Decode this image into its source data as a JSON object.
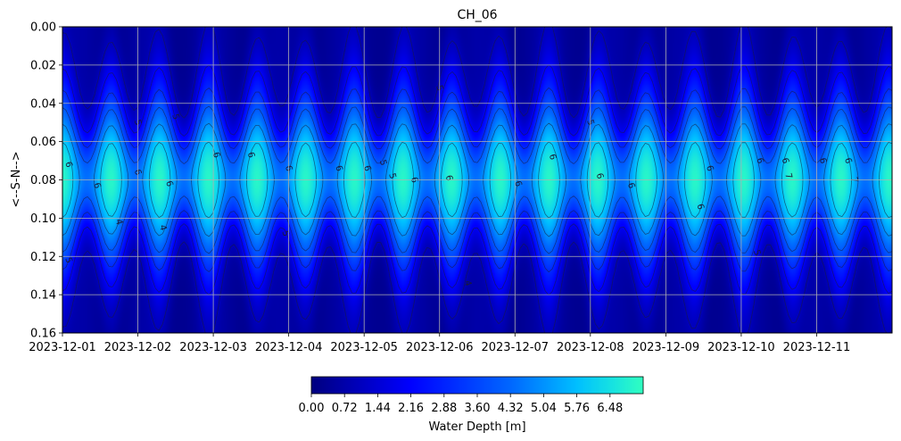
{
  "chart_data": {
    "type": "heatmap",
    "title": "CH_06",
    "xlabel": "",
    "ylabel": "<--S-N-->",
    "x_tick_labels": [
      "2023-12-01",
      "2023-12-02",
      "2023-12-03",
      "2023-12-04",
      "2023-12-05",
      "2023-12-06",
      "2023-12-07",
      "2023-12-08",
      "2023-12-09",
      "2023-12-10",
      "2023-12-11"
    ],
    "x_range": [
      "2023-12-01",
      "2023-12-12"
    ],
    "y_tick_labels": [
      "0.00",
      "0.02",
      "0.04",
      "0.06",
      "0.08",
      "0.10",
      "0.12",
      "0.14",
      "0.16"
    ],
    "y_range": [
      0.0,
      0.16
    ],
    "y_inverted": true,
    "grid": true,
    "colormap": "winter-like: #00007f → #0000ff → #00b4ff → #30ffc0",
    "colorbar": {
      "label": "Water Depth [m]",
      "ticks": [
        "0.00",
        "0.72",
        "1.44",
        "2.16",
        "2.88",
        "3.60",
        "4.32",
        "5.04",
        "5.76",
        "6.48"
      ],
      "range": [
        0.0,
        7.2
      ],
      "orientation": "horizontal"
    },
    "contour_levels": [
      1,
      2,
      3,
      4,
      5,
      6,
      7
    ],
    "pattern": {
      "description": "oscillating water depth across the section, peaking near the center",
      "peak_y": 0.08,
      "peak_depth": 7.0,
      "oscillations_per_day": 1.55,
      "edge_depth": 0.5
    },
    "contour_labels": [
      {
        "x": "2023-12-01T02",
        "y": 0.072,
        "text": "6"
      },
      {
        "x": "2023-12-01T11",
        "y": 0.083,
        "text": "6"
      },
      {
        "x": "2023-12-01T18",
        "y": 0.102,
        "text": "4"
      },
      {
        "x": "2023-12-01T02",
        "y": 0.122,
        "text": "5"
      },
      {
        "x": "2023-12-02T00",
        "y": 0.05,
        "text": "5"
      },
      {
        "x": "2023-12-02T00",
        "y": 0.076,
        "text": "6"
      },
      {
        "x": "2023-12-02T08",
        "y": 0.105,
        "text": "4"
      },
      {
        "x": "2023-12-02T12",
        "y": 0.047,
        "text": "5"
      },
      {
        "x": "2023-12-02T10",
        "y": 0.082,
        "text": "6"
      },
      {
        "x": "2023-12-03T01",
        "y": 0.067,
        "text": "6"
      },
      {
        "x": "2023-12-03T12",
        "y": 0.067,
        "text": "6"
      },
      {
        "x": "2023-12-04T00",
        "y": 0.074,
        "text": "6"
      },
      {
        "x": "2023-12-03T23",
        "y": 0.108,
        "text": "5"
      },
      {
        "x": "2023-12-04T16",
        "y": 0.074,
        "text": "6"
      },
      {
        "x": "2023-12-05T01",
        "y": 0.074,
        "text": "6"
      },
      {
        "x": "2023-12-05T06",
        "y": 0.071,
        "text": "5"
      },
      {
        "x": "2023-12-05T09",
        "y": 0.078,
        "text": "5"
      },
      {
        "x": "2023-12-05T16",
        "y": 0.08,
        "text": "6"
      },
      {
        "x": "2023-12-06T03",
        "y": 0.079,
        "text": "6"
      },
      {
        "x": "2023-12-06T00",
        "y": 0.032,
        "text": "5"
      },
      {
        "x": "2023-12-06T09",
        "y": 0.134,
        "text": "4"
      },
      {
        "x": "2023-12-07T01",
        "y": 0.082,
        "text": "6"
      },
      {
        "x": "2023-12-07T12",
        "y": 0.068,
        "text": "6"
      },
      {
        "x": "2023-12-08T03",
        "y": 0.078,
        "text": "6"
      },
      {
        "x": "2023-12-08T00",
        "y": 0.05,
        "text": "5"
      },
      {
        "x": "2023-12-08T13",
        "y": 0.083,
        "text": "6"
      },
      {
        "x": "2023-12-09T14",
        "y": 0.074,
        "text": "6"
      },
      {
        "x": "2023-12-09T11",
        "y": 0.094,
        "text": "6"
      },
      {
        "x": "2023-12-10T06",
        "y": 0.07,
        "text": "6"
      },
      {
        "x": "2023-12-10T05",
        "y": 0.118,
        "text": "5"
      },
      {
        "x": "2023-12-10T14",
        "y": 0.07,
        "text": "6"
      },
      {
        "x": "2023-12-10T15",
        "y": 0.078,
        "text": "7"
      },
      {
        "x": "2023-12-11T02",
        "y": 0.07,
        "text": "6"
      },
      {
        "x": "2023-12-11T10",
        "y": 0.07,
        "text": "6"
      },
      {
        "x": "2023-12-11T12",
        "y": 0.08,
        "text": "7"
      }
    ]
  }
}
